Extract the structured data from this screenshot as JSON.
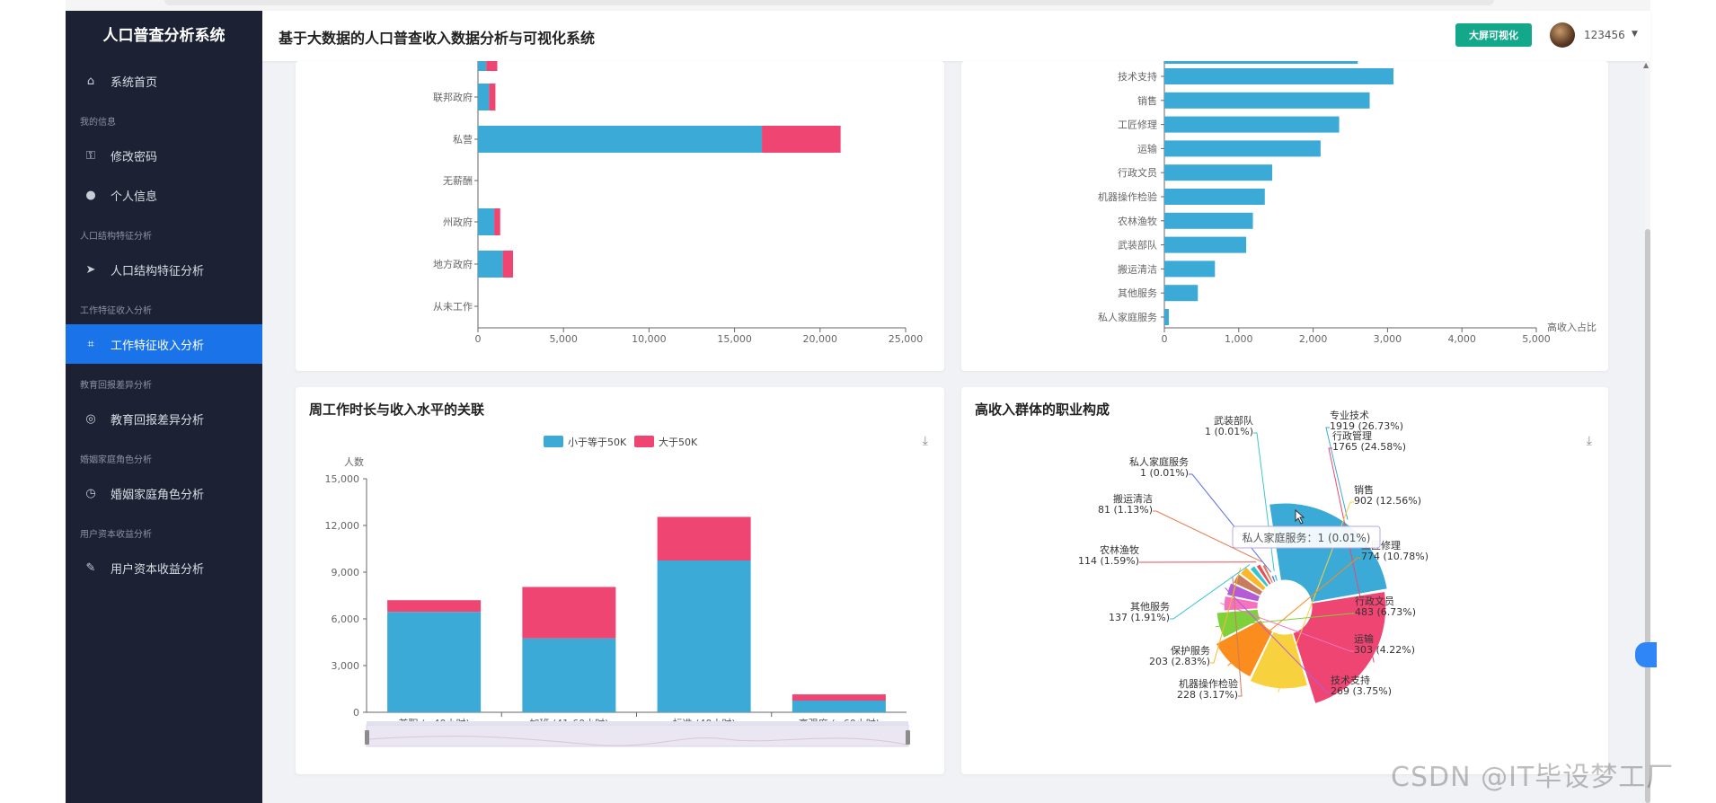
{
  "app": {
    "name": "人口普查分析系统",
    "title": "基于大数据的人口普查收入数据分析与可视化系统"
  },
  "header": {
    "bigscreen_label": "大屏可视化",
    "username": "123456",
    "caret": "▼"
  },
  "sidebar": {
    "home": {
      "label": "系统首页",
      "icon": "home-icon",
      "glyph": "⌂"
    },
    "group_myinfo": "我的信息",
    "change_password": {
      "label": "修改密码",
      "icon": "lock-icon",
      "glyph": "🔒︎"
    },
    "profile": {
      "label": "个人信息",
      "icon": "user-icon",
      "glyph": "●"
    },
    "group_population": "人口结构特征分析",
    "population": {
      "label": "人口结构特征分析",
      "icon": "navigation-icon",
      "glyph": "➤"
    },
    "group_work": "工作特征收入分析",
    "work": {
      "label": "工作特征收入分析",
      "icon": "crop-icon",
      "glyph": "⌗"
    },
    "group_edu": "教育回报差异分析",
    "edu": {
      "label": "教育回报差异分析",
      "icon": "target-icon",
      "glyph": "◎"
    },
    "group_marriage": "婚姻家庭角色分析",
    "marriage": {
      "label": "婚姻家庭角色分析",
      "icon": "clock-icon",
      "glyph": "◷"
    },
    "group_capital": "用户资本收益分析",
    "capital": {
      "label": "用户资本收益分析",
      "icon": "bell-off-icon",
      "glyph": "✎"
    }
  },
  "colors": {
    "low": "#3baad6",
    "high": "#ef4573",
    "active": "#1a73e8",
    "sidebar": "#1c2233",
    "bigscreen": "#13a88a"
  },
  "cards": {
    "hours_title": "周工作时长与收入水平的关联",
    "occupation_title": "高收入群体的职业构成",
    "download_icon": "⤓"
  },
  "chart_data": [
    {
      "type": "bar",
      "orientation": "horizontal",
      "stacked": true,
      "categories": [
        "联邦政府",
        "私营",
        "无薪酬",
        "州政府",
        "地方政府",
        "从未工作"
      ],
      "series": [
        {
          "name": "小于等于50K",
          "values": [
            650,
            16600,
            0,
            950,
            1450,
            0
          ]
        },
        {
          "name": "大于50K",
          "values": [
            370,
            4600,
            0,
            350,
            600,
            0
          ]
        }
      ],
      "xlim": [
        0,
        25000
      ],
      "xticks": [
        "0",
        "5,000",
        "10,000",
        "15,000",
        "20,000",
        "25,000"
      ]
    },
    {
      "type": "bar",
      "orientation": "horizontal",
      "categories": [
        "技术支持",
        "销售",
        "工匠修理",
        "运输",
        "行政文员",
        "机器操作检验",
        "农林渔牧",
        "武装部队",
        "搬运清洁",
        "其他服务",
        "私人家庭服务"
      ],
      "values": [
        3080,
        2760,
        2350,
        2100,
        1450,
        1350,
        1190,
        1100,
        680,
        450,
        60
      ],
      "xlim": [
        0,
        5000
      ],
      "xticks": [
        "0",
        "1,000",
        "2,000",
        "3,000",
        "4,000",
        "5,000"
      ],
      "xlabel": "高收入占比"
    },
    {
      "type": "bar",
      "stacked": true,
      "title": "周工作时长与收入水平的关联",
      "categories": [
        "兼职 (<40小时)",
        "加班 (41-60小时)",
        "标准 (40小时)",
        "高强度 (>60小时)"
      ],
      "series": [
        {
          "name": "小于等于50K",
          "values": [
            6450,
            4750,
            9750,
            750
          ]
        },
        {
          "name": "大于50K",
          "values": [
            750,
            3300,
            2800,
            400
          ]
        }
      ],
      "ylabel": "人数",
      "ylim": [
        0,
        15000
      ],
      "yticks": [
        "0",
        "3,000",
        "6,000",
        "9,000",
        "12,000",
        "15,000"
      ]
    },
    {
      "type": "pie",
      "subtype": "rose",
      "title": "高收入群体的职业构成",
      "slices": [
        {
          "label": "专业技术",
          "value": 1919,
          "pct": "1919 (26.73%)",
          "color": "#3baad6"
        },
        {
          "label": "行政管理",
          "value": 1765,
          "pct": "1765 (24.58%)",
          "color": "#ef4573"
        },
        {
          "label": "销售",
          "value": 902,
          "pct": "902 (12.56%)",
          "color": "#f7d23e"
        },
        {
          "label": "工匠修理",
          "value": 774,
          "pct": "774 (10.78%)",
          "color": "#fb8c1e"
        },
        {
          "label": "行政文员",
          "value": 483,
          "pct": "483 (6.73%)",
          "color": "#7fd13b"
        },
        {
          "label": "运输",
          "value": 303,
          "pct": "303 (4.22%)",
          "color": "#f472c0"
        },
        {
          "label": "技术支持",
          "value": 269,
          "pct": "269 (3.75%)",
          "color": "#b45cd6"
        },
        {
          "label": "机器操作检验",
          "value": 228,
          "pct": "228 (3.17%)",
          "color": "#c97c5d"
        },
        {
          "label": "保护服务",
          "value": 203,
          "pct": "203 (2.83%)",
          "color": "#fbb72c"
        },
        {
          "label": "其他服务",
          "value": 137,
          "pct": "137 (1.91%)",
          "color": "#34c6d0"
        },
        {
          "label": "农林渔牧",
          "value": 114,
          "pct": "114 (1.59%)",
          "color": "#ea4d57"
        },
        {
          "label": "搬运清洁",
          "value": 81,
          "pct": "81 (1.13%)",
          "color": "#e87a4f"
        },
        {
          "label": "私人家庭服务",
          "value": 1,
          "pct": "1 (0.01%)",
          "color": "#5b6ee8"
        },
        {
          "label": "武装部队",
          "value": 1,
          "pct": "1 (0.01%)",
          "color": "#3fc6c6"
        }
      ],
      "tooltip": "私人家庭服务：1 (0.01%)"
    }
  ],
  "watermark": "CSDN @IT毕设梦工厂"
}
